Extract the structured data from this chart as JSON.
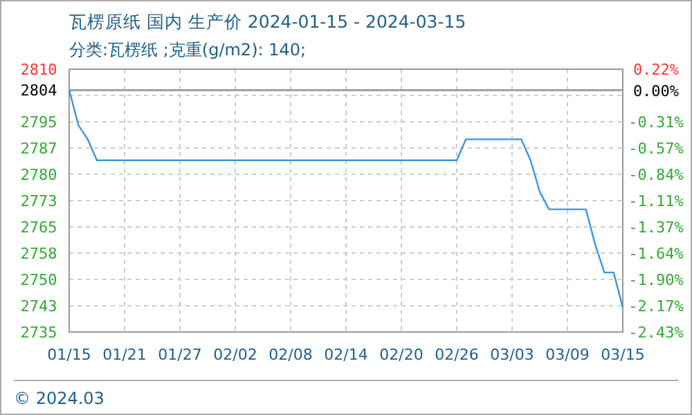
{
  "chart_data": {
    "type": "line",
    "title": "瓦楞原纸 国内 生产价 2024-01-15 - 2024-03-15",
    "subtitle": "分类:瓦楞纸 ;克重(g/m2): 140;",
    "x": [
      "2024-01-15",
      "2024-01-16",
      "2024-01-17",
      "2024-01-18",
      "2024-02-26",
      "2024-02-27",
      "2024-03-04",
      "2024-03-05",
      "2024-03-06",
      "2024-03-07",
      "2024-03-11",
      "2024-03-12",
      "2024-03-13",
      "2024-03-14",
      "2024-03-15"
    ],
    "series": [
      {
        "color": "#3a96dd",
        "values": [
          2804,
          2794,
          2790,
          2784,
          2784,
          2790,
          2790,
          2784,
          2775,
          2770,
          2770,
          2760,
          2752,
          2752,
          2742
        ]
      }
    ],
    "xlim": [
      "2024-01-15",
      "2024-03-15"
    ],
    "xticks": [
      {
        "value": "2024-01-15",
        "label": "01/15"
      },
      {
        "value": "2024-01-21",
        "label": "01/21"
      },
      {
        "value": "2024-01-27",
        "label": "01/27"
      },
      {
        "value": "2024-02-02",
        "label": "02/02"
      },
      {
        "value": "2024-02-08",
        "label": "02/08"
      },
      {
        "value": "2024-02-14",
        "label": "02/14"
      },
      {
        "value": "2024-02-20",
        "label": "02/20"
      },
      {
        "value": "2024-02-26",
        "label": "02/26"
      },
      {
        "value": "2024-03-03",
        "label": "03/03"
      },
      {
        "value": "2024-03-09",
        "label": "03/09"
      },
      {
        "value": "2024-03-15",
        "label": "03/15"
      }
    ],
    "ylim": [
      2735,
      2810
    ],
    "yticks": [
      2810,
      {
        "value": 2802.5,
        "label": null
      },
      2795,
      {
        "value": 2787.5,
        "label": "2787"
      },
      2780,
      {
        "value": 2772.5,
        "label": "2773"
      },
      2765,
      {
        "value": 2757.5,
        "label": "2758"
      },
      2750,
      {
        "value": 2742.5,
        "label": "2743"
      },
      2735
    ],
    "y2lim": [
      -2.43,
      0.22
    ],
    "y2ticks": [
      {
        "value": 0.22,
        "label": "0.22%"
      },
      {
        "value": 0,
        "label": "0.00%"
      },
      {
        "value": -0.045,
        "label": null
      },
      {
        "value": -0.31,
        "label": "-0.31%"
      },
      {
        "value": -0.575,
        "label": "-0.57%"
      },
      {
        "value": -0.84,
        "label": "-0.84%"
      },
      {
        "value": -1.105,
        "label": "-1.11%"
      },
      {
        "value": -1.37,
        "label": "-1.37%"
      },
      {
        "value": -1.635,
        "label": "-1.64%"
      },
      {
        "value": -1.9,
        "label": "-1.90%"
      },
      {
        "value": -2.165,
        "label": "-2.17%"
      },
      {
        "value": -2.43,
        "label": "-2.43%"
      }
    ],
    "ref_lines": [
      {
        "axis": "y",
        "value": 2804,
        "label": "2804",
        "color": "#999999"
      }
    ],
    "grid": true,
    "marker": "none",
    "line_style": "solid",
    "annotations": [
      "© 2024.03"
    ]
  }
}
